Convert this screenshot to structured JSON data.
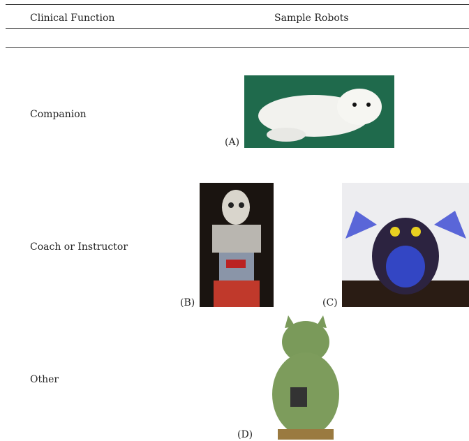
{
  "table": {
    "header": [
      "Clinical Function",
      "Sample Robots"
    ],
    "rows": [
      {
        "function": "Companion",
        "robots": [
          "(A)"
        ]
      },
      {
        "function": "Coach or Instructor",
        "robots": [
          "(B)",
          "(C)"
        ]
      },
      {
        "function": "Other",
        "robots": [
          "(D)"
        ]
      }
    ]
  }
}
